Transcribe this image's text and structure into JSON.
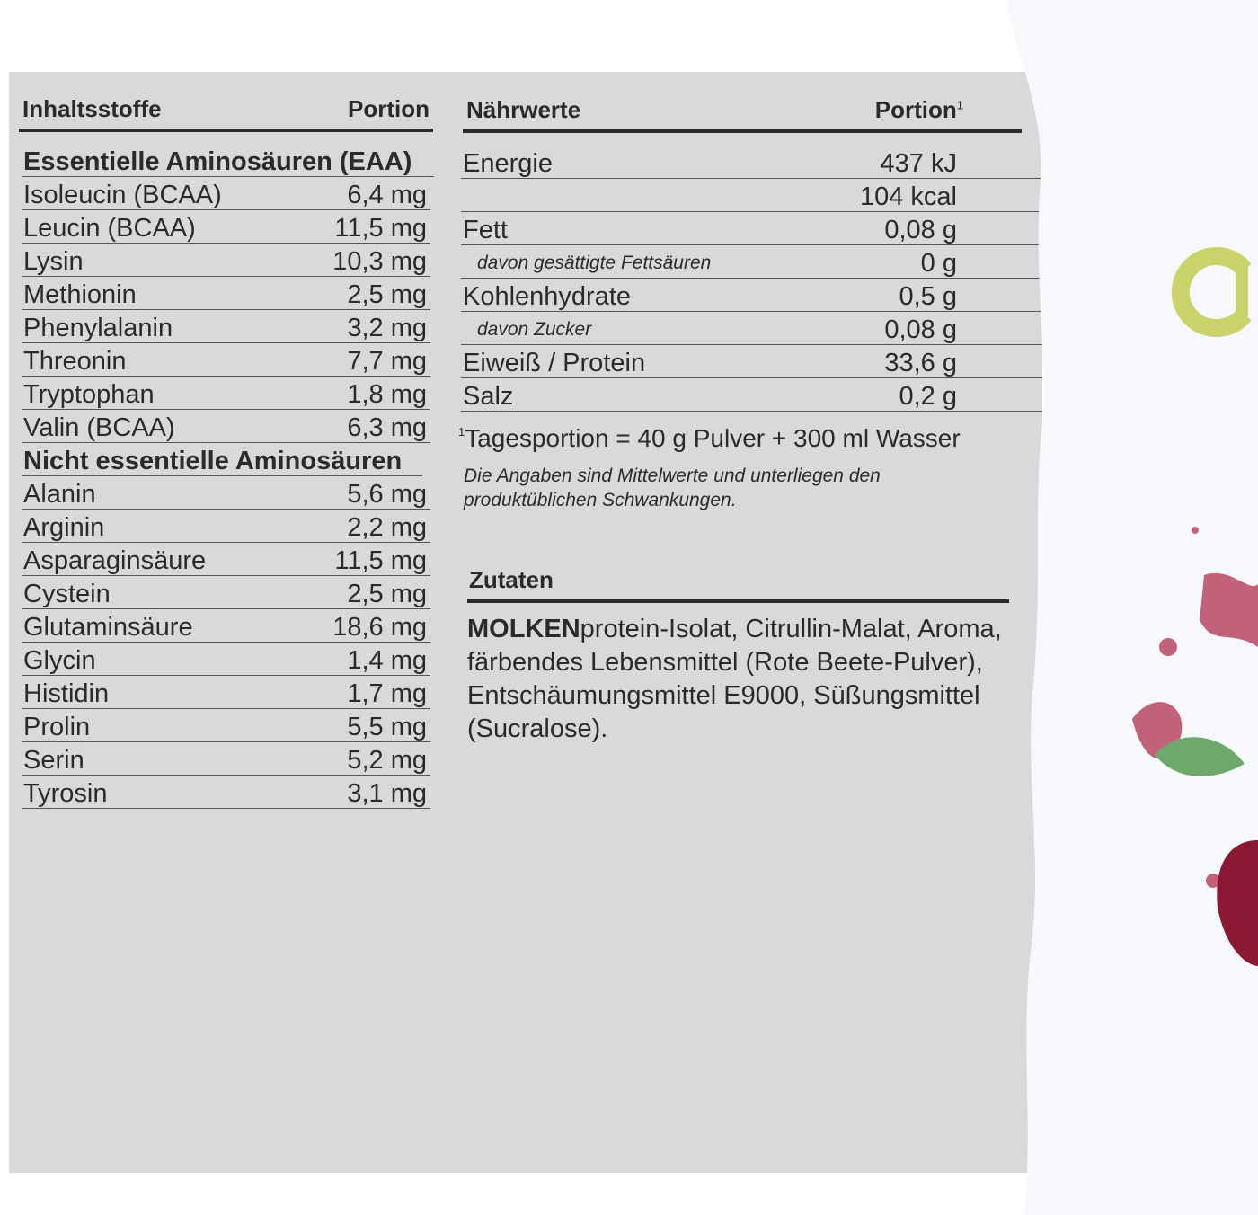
{
  "ingredients_table": {
    "header": {
      "name": "Inhaltsstoffe",
      "portion": "Portion"
    },
    "sections": [
      {
        "title": "Essentielle Aminosäuren (EAA)",
        "rows": [
          {
            "name": "Isoleucin (BCAA)",
            "value": "6,4 mg"
          },
          {
            "name": "Leucin (BCAA)",
            "value": "11,5 mg"
          },
          {
            "name": "Lysin",
            "value": "10,3 mg"
          },
          {
            "name": "Methionin",
            "value": "2,5 mg"
          },
          {
            "name": "Phenylalanin",
            "value": "3,2 mg"
          },
          {
            "name": "Threonin",
            "value": "7,7 mg"
          },
          {
            "name": "Tryptophan",
            "value": "1,8 mg"
          },
          {
            "name": "Valin (BCAA)",
            "value": "6,3 mg"
          }
        ]
      },
      {
        "title": "Nicht essentielle Aminosäuren",
        "rows": [
          {
            "name": "Alanin",
            "value": "5,6 mg"
          },
          {
            "name": "Arginin",
            "value": "2,2 mg"
          },
          {
            "name": "Asparaginsäure",
            "value": "11,5 mg"
          },
          {
            "name": "Cystein",
            "value": "2,5 mg"
          },
          {
            "name": "Glutaminsäure",
            "value": "18,6 mg"
          },
          {
            "name": "Glycin",
            "value": "1,4 mg"
          },
          {
            "name": "Histidin",
            "value": "1,7 mg"
          },
          {
            "name": "Prolin",
            "value": "5,5 mg"
          },
          {
            "name": "Serin",
            "value": "5,2 mg"
          },
          {
            "name": "Tyrosin",
            "value": "3,1 mg"
          }
        ]
      }
    ]
  },
  "nutrition_table": {
    "header": {
      "name": "Nährwerte",
      "portion": "Portion",
      "portion_note": "1"
    },
    "rows": [
      {
        "name": "Energie",
        "value": "437 kJ"
      },
      {
        "value": "104 kcal"
      },
      {
        "name": "Fett",
        "value": "0,08 g"
      },
      {
        "name": "davon gesättigte Fettsäuren",
        "value": "0 g",
        "sub": true
      },
      {
        "name": "Kohlenhydrate",
        "value": "0,5 g"
      },
      {
        "name": "davon Zucker",
        "value": "0,08 g",
        "sub": true
      },
      {
        "name": "Eiweiß / Protein",
        "value": "33,6 g"
      },
      {
        "name": "Salz",
        "value": "0,2 g"
      }
    ],
    "footnote": {
      "marker": "1",
      "text": "Tagesportion = 40 g Pulver + 300 ml Wasser"
    },
    "note": "Die Angaben sind Mittelwerte und unterliegen den produktüblichen Schwankungen."
  },
  "ingredients": {
    "title": "Zutaten",
    "allergen": "MOLKEN",
    "text": "protein-Isolat, Citrullin-Malat, Aroma, färbendes Lebensmittel (Rote Beete-Pulver), Entschäumungsmittel E9000, Süßungsmittel (Sucralose)."
  }
}
